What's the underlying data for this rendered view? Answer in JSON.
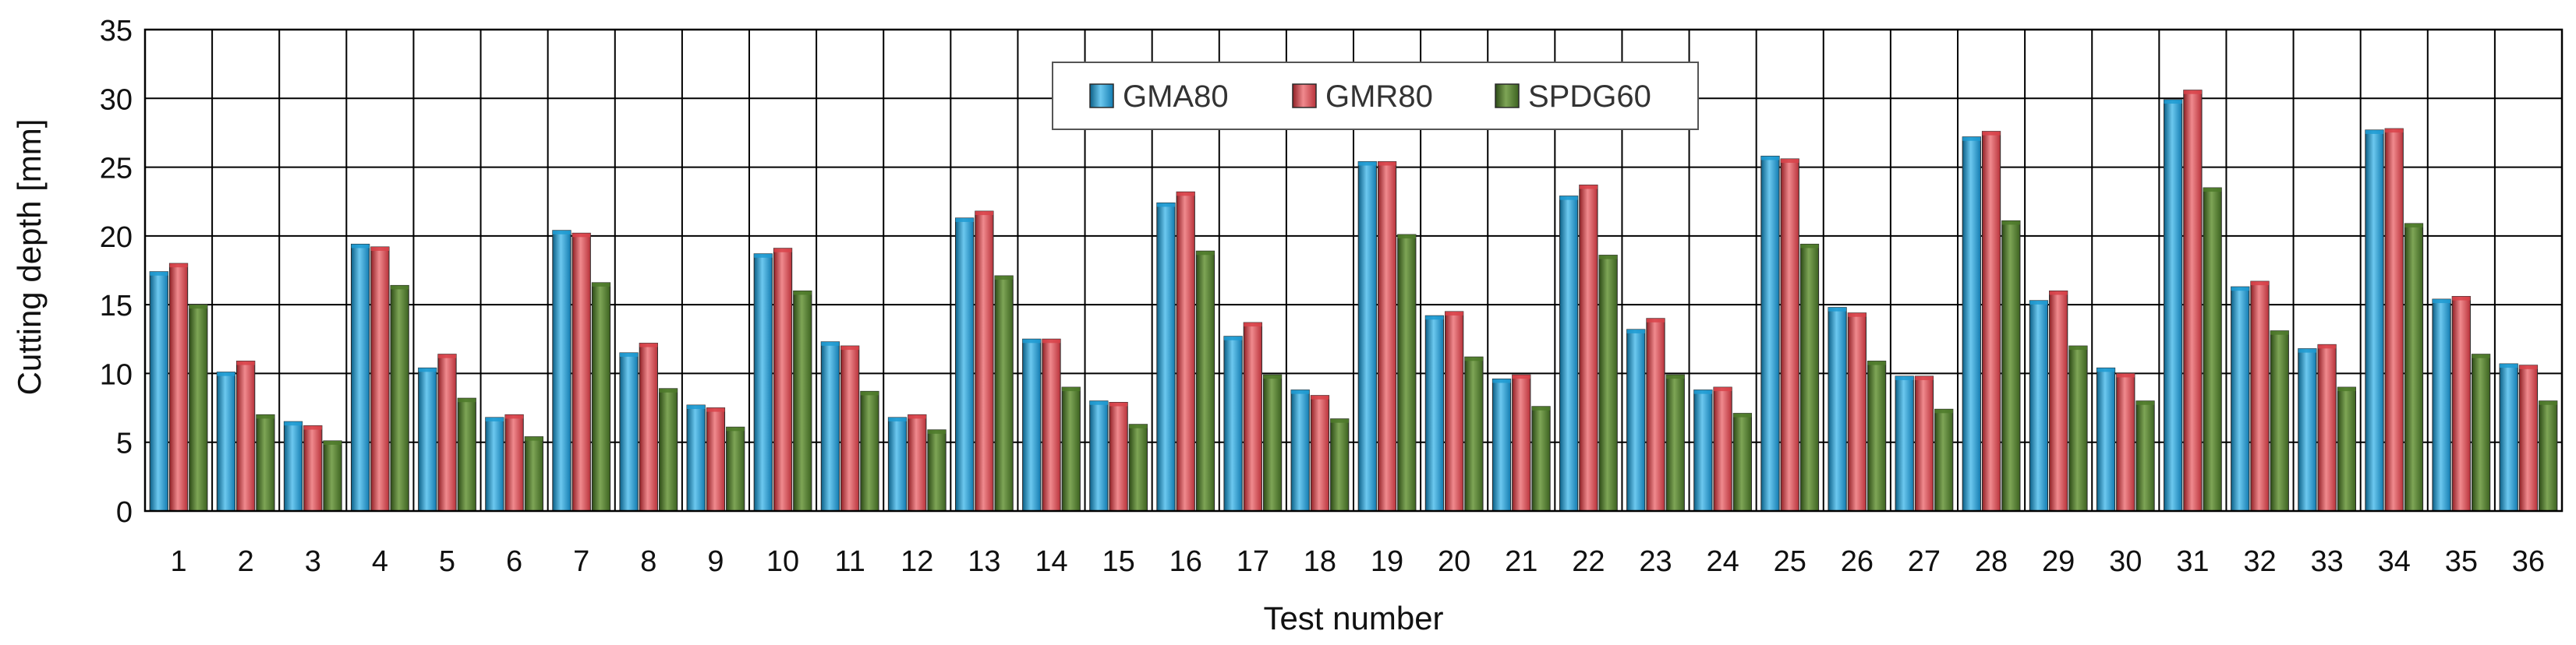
{
  "chart_data": {
    "type": "bar",
    "title": "",
    "xlabel": "Test number",
    "ylabel": "Cutting depth  [mm]",
    "ylim": [
      0,
      35
    ],
    "yticks": [
      0,
      5,
      10,
      15,
      20,
      25,
      30,
      35
    ],
    "grid": true,
    "legend_position": "top-center",
    "categories": [
      "1",
      "2",
      "3",
      "4",
      "5",
      "6",
      "7",
      "8",
      "9",
      "10",
      "11",
      "12",
      "13",
      "14",
      "15",
      "16",
      "17",
      "18",
      "19",
      "20",
      "21",
      "22",
      "23",
      "24",
      "25",
      "26",
      "27",
      "28",
      "29",
      "30",
      "31",
      "32",
      "33",
      "34",
      "35",
      "36"
    ],
    "series": [
      {
        "name": "GMA80",
        "color": "#1E9BD2",
        "values": [
          17.4,
          10.1,
          6.5,
          19.4,
          10.4,
          6.8,
          20.4,
          11.5,
          7.7,
          18.7,
          12.3,
          6.8,
          21.3,
          12.5,
          8.0,
          22.4,
          12.7,
          8.8,
          25.4,
          14.2,
          9.6,
          22.9,
          13.2,
          8.8,
          25.8,
          14.8,
          9.8,
          27.2,
          15.3,
          10.4,
          29.9,
          16.3,
          11.8,
          27.7,
          15.4,
          10.7
        ]
      },
      {
        "name": "GMR80",
        "color": "#D9434A",
        "values": [
          18.0,
          10.9,
          6.2,
          19.2,
          11.4,
          7.0,
          20.2,
          12.2,
          7.5,
          19.1,
          12.0,
          7.0,
          21.8,
          12.5,
          7.9,
          23.2,
          13.7,
          8.4,
          25.4,
          14.5,
          9.9,
          23.7,
          14.0,
          9.0,
          25.6,
          14.4,
          9.8,
          27.6,
          16.0,
          10.0,
          30.6,
          16.7,
          12.1,
          27.8,
          15.6,
          10.6
        ]
      },
      {
        "name": "SPDG60",
        "color": "#4E7A2A",
        "values": [
          15.0,
          7.0,
          5.1,
          16.4,
          8.2,
          5.4,
          16.6,
          8.9,
          6.1,
          16.0,
          8.7,
          5.9,
          17.1,
          9.0,
          6.3,
          18.9,
          9.9,
          6.7,
          20.1,
          11.2,
          7.6,
          18.6,
          9.9,
          7.1,
          19.4,
          10.9,
          7.4,
          21.1,
          12.0,
          8.0,
          23.5,
          13.1,
          9.0,
          20.9,
          11.4,
          8.0
        ]
      }
    ]
  }
}
